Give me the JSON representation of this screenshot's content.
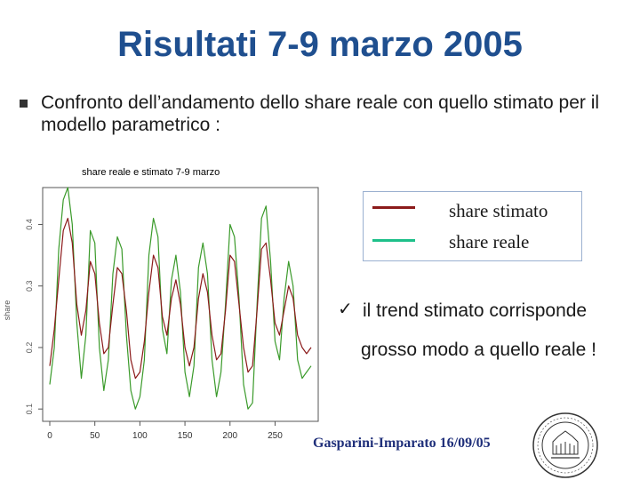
{
  "slide": {
    "title": "Risultati 7-9 marzo 2005",
    "bullet": "Confronto dell’andamento dello share reale con quello stimato per il modello parametrico :",
    "note_line1": "il trend stimato corrisponde",
    "note_line2": "grosso modo a quello reale !",
    "check_icon": "ü",
    "footer": "Gasparini-Imparato 16/09/05",
    "colors": {
      "title": "#1f4f8f",
      "stimato": "#8b1a1a",
      "reale": "#3a9a2a",
      "legend_reale": "#1ec08a"
    }
  },
  "chart_data": {
    "type": "line",
    "title": "share reale e stimato 7-9 marzo",
    "xlabel": "",
    "ylabel": "share",
    "xlim": [
      0,
      290
    ],
    "ylim": [
      0.08,
      0.46
    ],
    "x_ticks": [
      0,
      50,
      100,
      150,
      200,
      250
    ],
    "y_ticks": [
      0.1,
      0.2,
      0.3,
      0.4
    ],
    "y_tick_labels": [
      "0.1",
      "0.2",
      "0.3",
      "0.4"
    ],
    "legend": {
      "placement": "top-right",
      "entries": [
        "share stimato",
        "share reale"
      ]
    },
    "x": [
      0,
      5,
      10,
      15,
      20,
      25,
      30,
      35,
      40,
      45,
      50,
      55,
      60,
      65,
      70,
      75,
      80,
      85,
      90,
      95,
      100,
      105,
      110,
      115,
      120,
      125,
      130,
      135,
      140,
      145,
      150,
      155,
      160,
      165,
      170,
      175,
      180,
      185,
      190,
      195,
      200,
      205,
      210,
      215,
      220,
      225,
      230,
      235,
      240,
      245,
      250,
      255,
      260,
      265,
      270,
      275,
      280,
      285,
      290
    ],
    "series": [
      {
        "name": "share stimato",
        "color": "#8b1a1a",
        "values": [
          0.17,
          0.23,
          0.31,
          0.39,
          0.41,
          0.37,
          0.27,
          0.22,
          0.26,
          0.34,
          0.32,
          0.24,
          0.19,
          0.2,
          0.27,
          0.33,
          0.32,
          0.26,
          0.18,
          0.15,
          0.16,
          0.21,
          0.29,
          0.35,
          0.33,
          0.25,
          0.22,
          0.28,
          0.31,
          0.27,
          0.2,
          0.17,
          0.2,
          0.28,
          0.32,
          0.29,
          0.22,
          0.18,
          0.19,
          0.26,
          0.35,
          0.34,
          0.27,
          0.2,
          0.16,
          0.17,
          0.26,
          0.36,
          0.37,
          0.31,
          0.24,
          0.22,
          0.26,
          0.3,
          0.28,
          0.22,
          0.2,
          0.19,
          0.2
        ]
      },
      {
        "name": "share reale",
        "color": "#3a9a2a",
        "values": [
          0.14,
          0.2,
          0.36,
          0.44,
          0.46,
          0.4,
          0.24,
          0.15,
          0.22,
          0.39,
          0.37,
          0.2,
          0.13,
          0.18,
          0.32,
          0.38,
          0.36,
          0.22,
          0.13,
          0.1,
          0.12,
          0.18,
          0.35,
          0.41,
          0.38,
          0.23,
          0.19,
          0.31,
          0.35,
          0.29,
          0.16,
          0.12,
          0.17,
          0.33,
          0.37,
          0.32,
          0.18,
          0.12,
          0.16,
          0.27,
          0.4,
          0.38,
          0.28,
          0.14,
          0.1,
          0.11,
          0.27,
          0.41,
          0.43,
          0.34,
          0.21,
          0.18,
          0.28,
          0.34,
          0.3,
          0.18,
          0.15,
          0.16,
          0.17
        ]
      }
    ]
  }
}
